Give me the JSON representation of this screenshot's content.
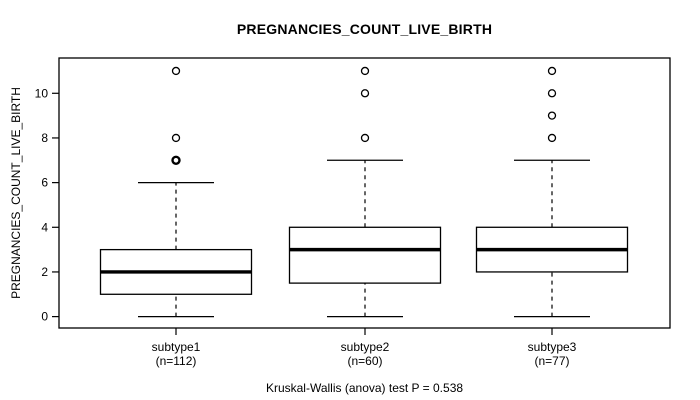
{
  "chart_data": {
    "type": "boxplot",
    "title": "PREGNANCIES_COUNT_LIVE_BIRTH",
    "ylabel": "PREGNANCIES_COUNT_LIVE_BIRTH",
    "caption": "Kruskal-Wallis (anova) test P = 0.538",
    "xlabel": "",
    "yticks": [
      0,
      2,
      4,
      6,
      8,
      10
    ],
    "ylim": [
      -0.51,
      11.58
    ],
    "grid": false,
    "legend": false,
    "categories": [
      "subtype1",
      "subtype2",
      "subtype3"
    ],
    "groups": [
      {
        "label": "subtype1",
        "sublabel": "(n=112)",
        "n": 112,
        "whisker_low": 0,
        "q1": 1,
        "median": 2,
        "q3": 3,
        "whisker_high": 6,
        "outliers": [
          7,
          8,
          11
        ],
        "bold_outliers": [
          7
        ]
      },
      {
        "label": "subtype2",
        "sublabel": "(n=60)",
        "n": 60,
        "whisker_low": 0,
        "q1": 1.5,
        "median": 3,
        "q3": 4,
        "whisker_high": 7,
        "outliers": [
          8,
          10,
          11
        ],
        "bold_outliers": []
      },
      {
        "label": "subtype3",
        "sublabel": "(n=77)",
        "n": 77,
        "whisker_low": 0,
        "q1": 2,
        "median": 3,
        "q3": 4,
        "whisker_high": 7,
        "outliers": [
          8,
          9,
          10,
          11
        ],
        "bold_outliers": []
      }
    ],
    "colors": {
      "stroke": "#000000",
      "box_fill": "#ffffff",
      "background": "#ffffff"
    }
  }
}
